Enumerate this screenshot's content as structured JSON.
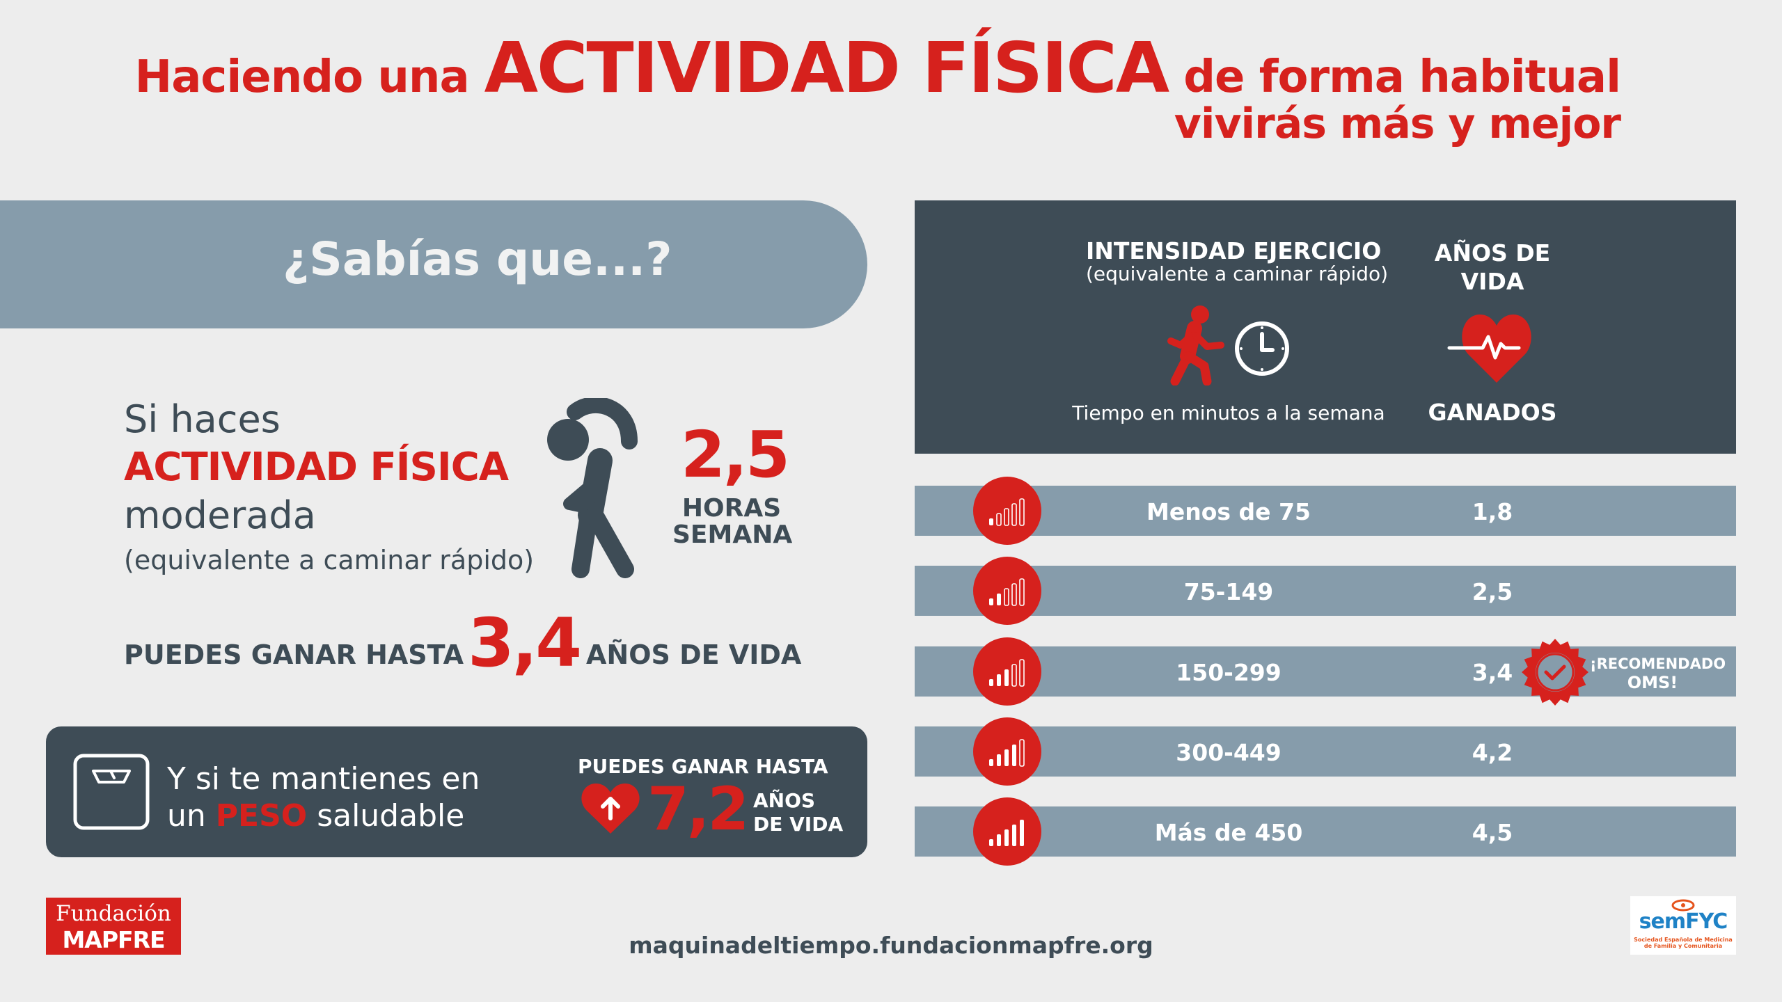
{
  "title": {
    "prefix": "Haciendo una",
    "highlight": "ACTIVIDAD FÍSICA",
    "suffix": "de forma habitual",
    "line2": "vivirás más y mejor"
  },
  "banner": {
    "text": "¿Sabías que...?"
  },
  "left": {
    "line1": "Si haces",
    "line2": "ACTIVIDAD FÍSICA",
    "line3": "moderada",
    "line4": "(equivalente a caminar rápido)",
    "hours_value": "2,5",
    "hours_label_1": "HORAS",
    "hours_label_2": "SEMANA",
    "gain_prefix": "PUEDES GANAR HASTA",
    "gain_value": "3,4",
    "gain_suffix": "AÑOS DE VIDA"
  },
  "peso": {
    "line1": "Y si te mantienes en",
    "line2_a": "un",
    "line2_b": "PESO",
    "line2_c": "saludable",
    "gain_label": "PUEDES GANAR HASTA",
    "gain_value": "7,2",
    "years_1": "AÑOS",
    "years_2": "DE VIDA"
  },
  "table": {
    "col1_title": "INTENSIDAD EJERCICIO",
    "col1_sub": "(equivalente a caminar rápido)",
    "col1_foot": "Tiempo en minutos a la semana",
    "col2_title": "AÑOS DE VIDA",
    "col2_foot": "GANADOS",
    "rows": [
      {
        "range": "Menos de 75",
        "years": "1,8",
        "level": 1
      },
      {
        "range": "75-149",
        "years": "2,5",
        "level": 2
      },
      {
        "range": "150-299",
        "years": "3,4",
        "level": 3
      },
      {
        "range": "300-449",
        "years": "4,2",
        "level": 4
      },
      {
        "range": "Más de 450",
        "years": "4,5",
        "level": 5
      }
    ],
    "recommended_1": "¡RECOMENDADO",
    "recommended_2": "OMS!"
  },
  "footer": {
    "mapfre_1": "Fundación",
    "mapfre_2": "MAPFRE",
    "url": "maquinadeltiempo.fundacionmapfre.org",
    "semfyc": "semFYC",
    "semfyc_sub": "Sociedad Española de Medicina de Familia y Comunitaria"
  },
  "colors": {
    "red": "#d6211d",
    "dark": "#3e4c56",
    "slate": "#869cab",
    "bg": "#ededed"
  }
}
